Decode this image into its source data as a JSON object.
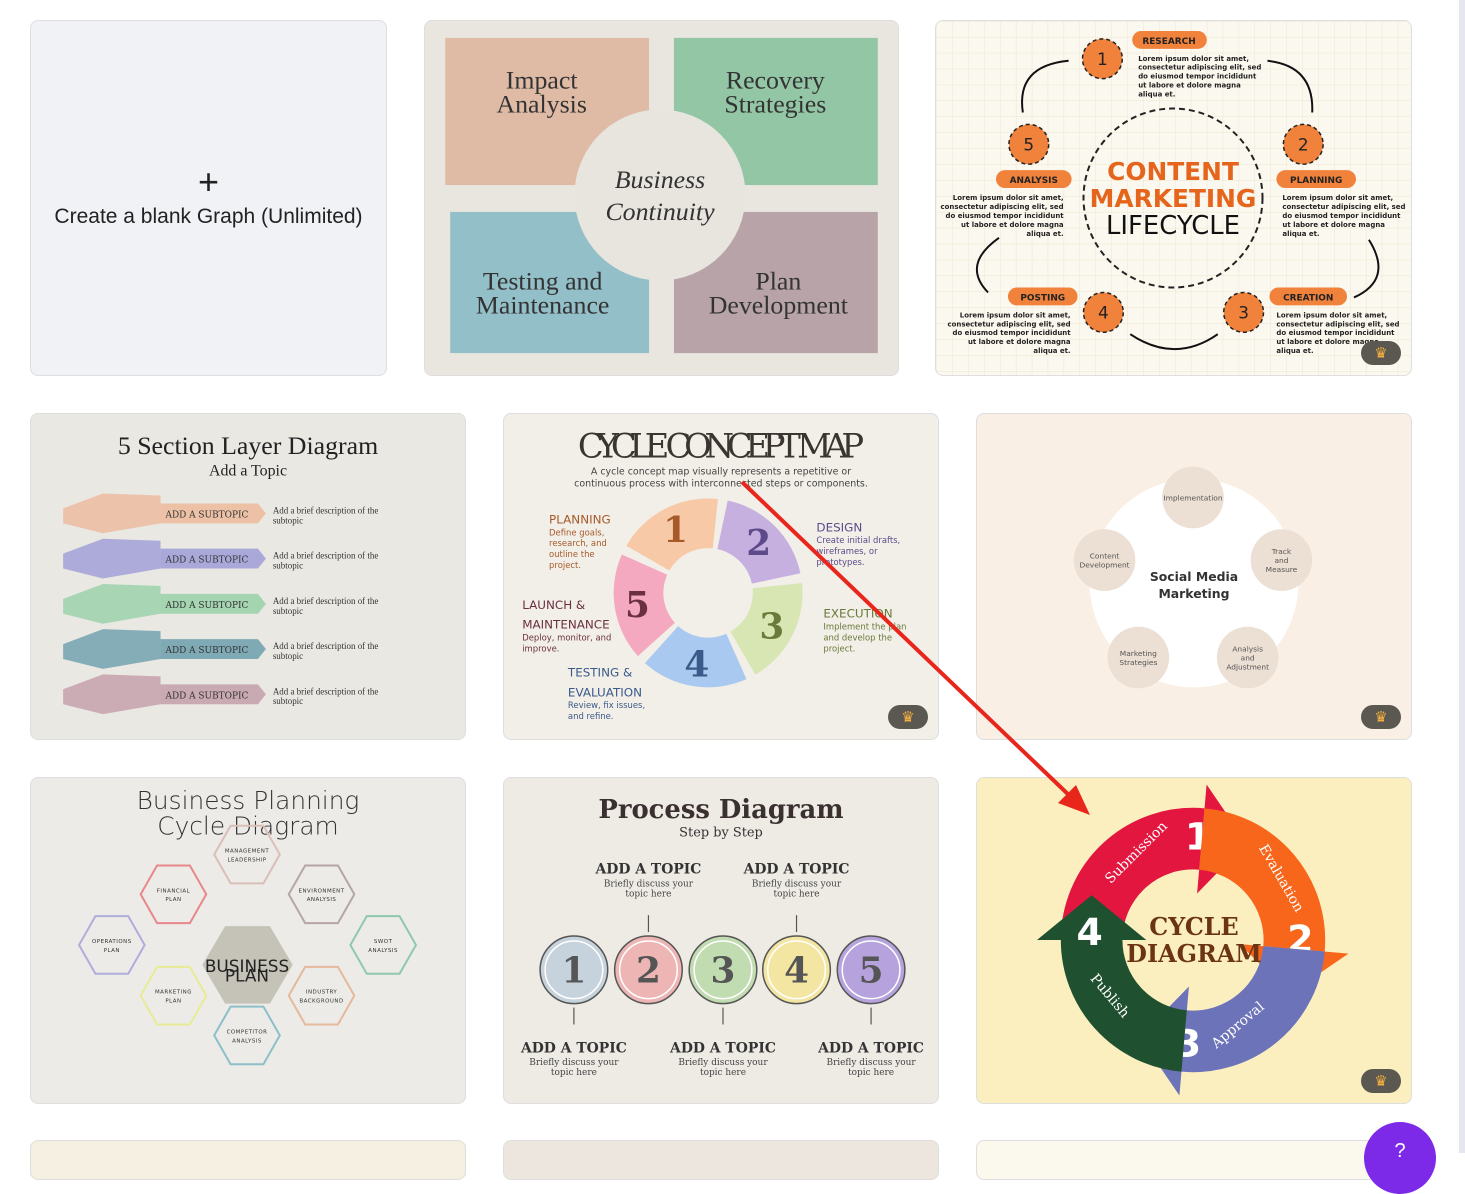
{
  "blank_card": {
    "icon": "plus-icon",
    "label": "Create a blank Graph (Unlimited)"
  },
  "business_continuity": {
    "quadrants": [
      {
        "label1": "Impact",
        "label2": "Analysis",
        "color": "#dfbba5"
      },
      {
        "label1": "Recovery",
        "label2": "Strategies",
        "color": "#92c6a5"
      },
      {
        "label1": "Testing and",
        "label2": "Maintenance",
        "color": "#93bfc8"
      },
      {
        "label1": "Plan",
        "label2": "Development",
        "color": "#b8a4a8"
      }
    ],
    "center1": "Business",
    "center2": "Continuity"
  },
  "content_marketing": {
    "title1": "CONTENT",
    "title2": "MARKETING",
    "title3": "LIFECYCLE",
    "steps": [
      {
        "num": "1",
        "label": "RESEARCH"
      },
      {
        "num": "2",
        "label": "PLANNING"
      },
      {
        "num": "3",
        "label": "CREATION"
      },
      {
        "num": "4",
        "label": "POSTING"
      },
      {
        "num": "5",
        "label": "ANALYSIS"
      }
    ],
    "lorem": [
      "Lorem ipsum dolor sit amet,",
      "consectetur adipiscing elit, sed",
      "do eiusmod tempor incididunt",
      "ut labore et dolore magna",
      "aliqua et."
    ],
    "accent": "#f0823c"
  },
  "layer_diagram": {
    "title": "5 Section Layer Diagram",
    "subtitle": "Add a Topic",
    "layers": [
      {
        "label": "ADD A SUBTOPIC",
        "desc1": "Add a brief description of the",
        "desc2": "subtopic",
        "color": "#ecc1a6"
      },
      {
        "label": "ADD A SUBTOPIC",
        "desc1": "Add a brief description of the",
        "desc2": "subtopic",
        "color": "#a9a8d9"
      },
      {
        "label": "ADD A SUBTOPIC",
        "desc1": "Add a brief description of the",
        "desc2": "subtopic",
        "color": "#a4d4b0"
      },
      {
        "label": "ADD A SUBTOPIC",
        "desc1": "Add a brief description of the",
        "desc2": "subtopic",
        "color": "#7faab5"
      },
      {
        "label": "ADD A SUBTOPIC",
        "desc1": "Add a brief description of the",
        "desc2": "subtopic",
        "color": "#c9a9b2"
      }
    ]
  },
  "cycle_concept": {
    "title": "CYCLE CONCEPT MAP",
    "desc1": "A cycle concept map visually represents a repetitive or",
    "desc2": "continuous process with interconnected steps or components.",
    "steps": [
      {
        "num": "1",
        "title": "PLANNING",
        "lines": [
          "Define goals,",
          "research, and",
          "outline the",
          "project."
        ],
        "color": "#f8c9a6",
        "text": "#a65a2a"
      },
      {
        "num": "2",
        "title": "DESIGN",
        "lines": [
          "Create initial drafts,",
          "wireframes, or",
          "prototypes."
        ],
        "color": "#c6b0e0",
        "text": "#5c4a8a"
      },
      {
        "num": "3",
        "title": "EXECUTION",
        "lines": [
          "Implement the plan",
          "and develop the",
          "project."
        ],
        "color": "#d8e6b4",
        "text": "#6a7a3a"
      },
      {
        "num": "4",
        "title1": "TESTING &",
        "title2": "EVALUATION",
        "lines": [
          "Review, fix issues,",
          "and refine."
        ],
        "color": "#a9c9f0",
        "text": "#3a5a8a"
      },
      {
        "num": "5",
        "title1": "LAUNCH &",
        "title2": "MAINTENANCE",
        "lines": [
          "Deploy, monitor, and",
          "improve."
        ],
        "color": "#f4a9c0",
        "text": "#6a3040"
      }
    ]
  },
  "social_media": {
    "center1": "Social Media",
    "center2": "Marketing",
    "nodes": [
      {
        "l1": "Implementation"
      },
      {
        "l1": "Track",
        "l2": "and",
        "l3": "Measure"
      },
      {
        "l1": "Analysis",
        "l2": "and",
        "l3": "Adjustment"
      },
      {
        "l1": "Marketing",
        "l2": "Strategies"
      },
      {
        "l1": "Content",
        "l2": "Development"
      }
    ]
  },
  "business_planning": {
    "title1": "Business Planning",
    "title2": "Cycle Diagram",
    "center1": "BUSINESS",
    "center2": "PLAN",
    "hexes": [
      {
        "l1": "MANAGEMENT",
        "l2": "LEADERSHIP",
        "color": "#d9bfb8"
      },
      {
        "l1": "ENVIRONMENT",
        "l2": "ANALYSIS",
        "color": "#b5a5a8"
      },
      {
        "l1": "SWOT",
        "l2": "ANALYSIS",
        "color": "#8fc9ad"
      },
      {
        "l1": "INDUSTRY",
        "l2": "BACKGROUND",
        "color": "#e6b89c"
      },
      {
        "l1": "COMPETITOR",
        "l2": "ANALYSIS",
        "color": "#8cbfc8"
      },
      {
        "l1": "MARKETING",
        "l2": "PLAN",
        "color": "#e8eb95"
      },
      {
        "l1": "OPERATIONS",
        "l2": "PLAN",
        "color": "#b0acdc"
      },
      {
        "l1": "FINANCIAL",
        "l2": "PLAN",
        "color": "#e8878a"
      }
    ]
  },
  "process_diagram": {
    "title": "Process Diagram",
    "subtitle": "Step by Step",
    "steps": [
      {
        "num": "1",
        "color": "#c6d3dc",
        "topic": "ADD A TOPIC",
        "d1": "Briefly discuss your",
        "d2": "topic here"
      },
      {
        "num": "2",
        "color": "#eeb5b5",
        "topic": "ADD A TOPIC",
        "d1": "Briefly discuss your",
        "d2": "topic here"
      },
      {
        "num": "3",
        "color": "#c2dcb2",
        "topic": "ADD A TOPIC",
        "d1": "Briefly discuss your",
        "d2": "topic here"
      },
      {
        "num": "4",
        "color": "#f3e6a2",
        "topic": "ADD A TOPIC",
        "d1": "Briefly discuss your",
        "d2": "topic here"
      },
      {
        "num": "5",
        "color": "#b6a3dd",
        "topic": "ADD A TOPIC",
        "d1": "Briefly discuss your",
        "d2": "topic here"
      }
    ]
  },
  "cycle_diagram": {
    "title1": "CYCLE",
    "title2": "DIAGRAM",
    "segments": [
      {
        "num": "1",
        "label": "Submission",
        "color": "#e3163f"
      },
      {
        "num": "2",
        "label": "Evaluation",
        "color": "#f7661a"
      },
      {
        "num": "3",
        "label": "Approval",
        "color": "#6c73b9"
      },
      {
        "num": "4",
        "label": "Publish",
        "color": "#1f5130"
      }
    ]
  },
  "premium_icon": "crown-icon",
  "help_button_icon": "question-icon",
  "annotation_color": "#e8261c"
}
